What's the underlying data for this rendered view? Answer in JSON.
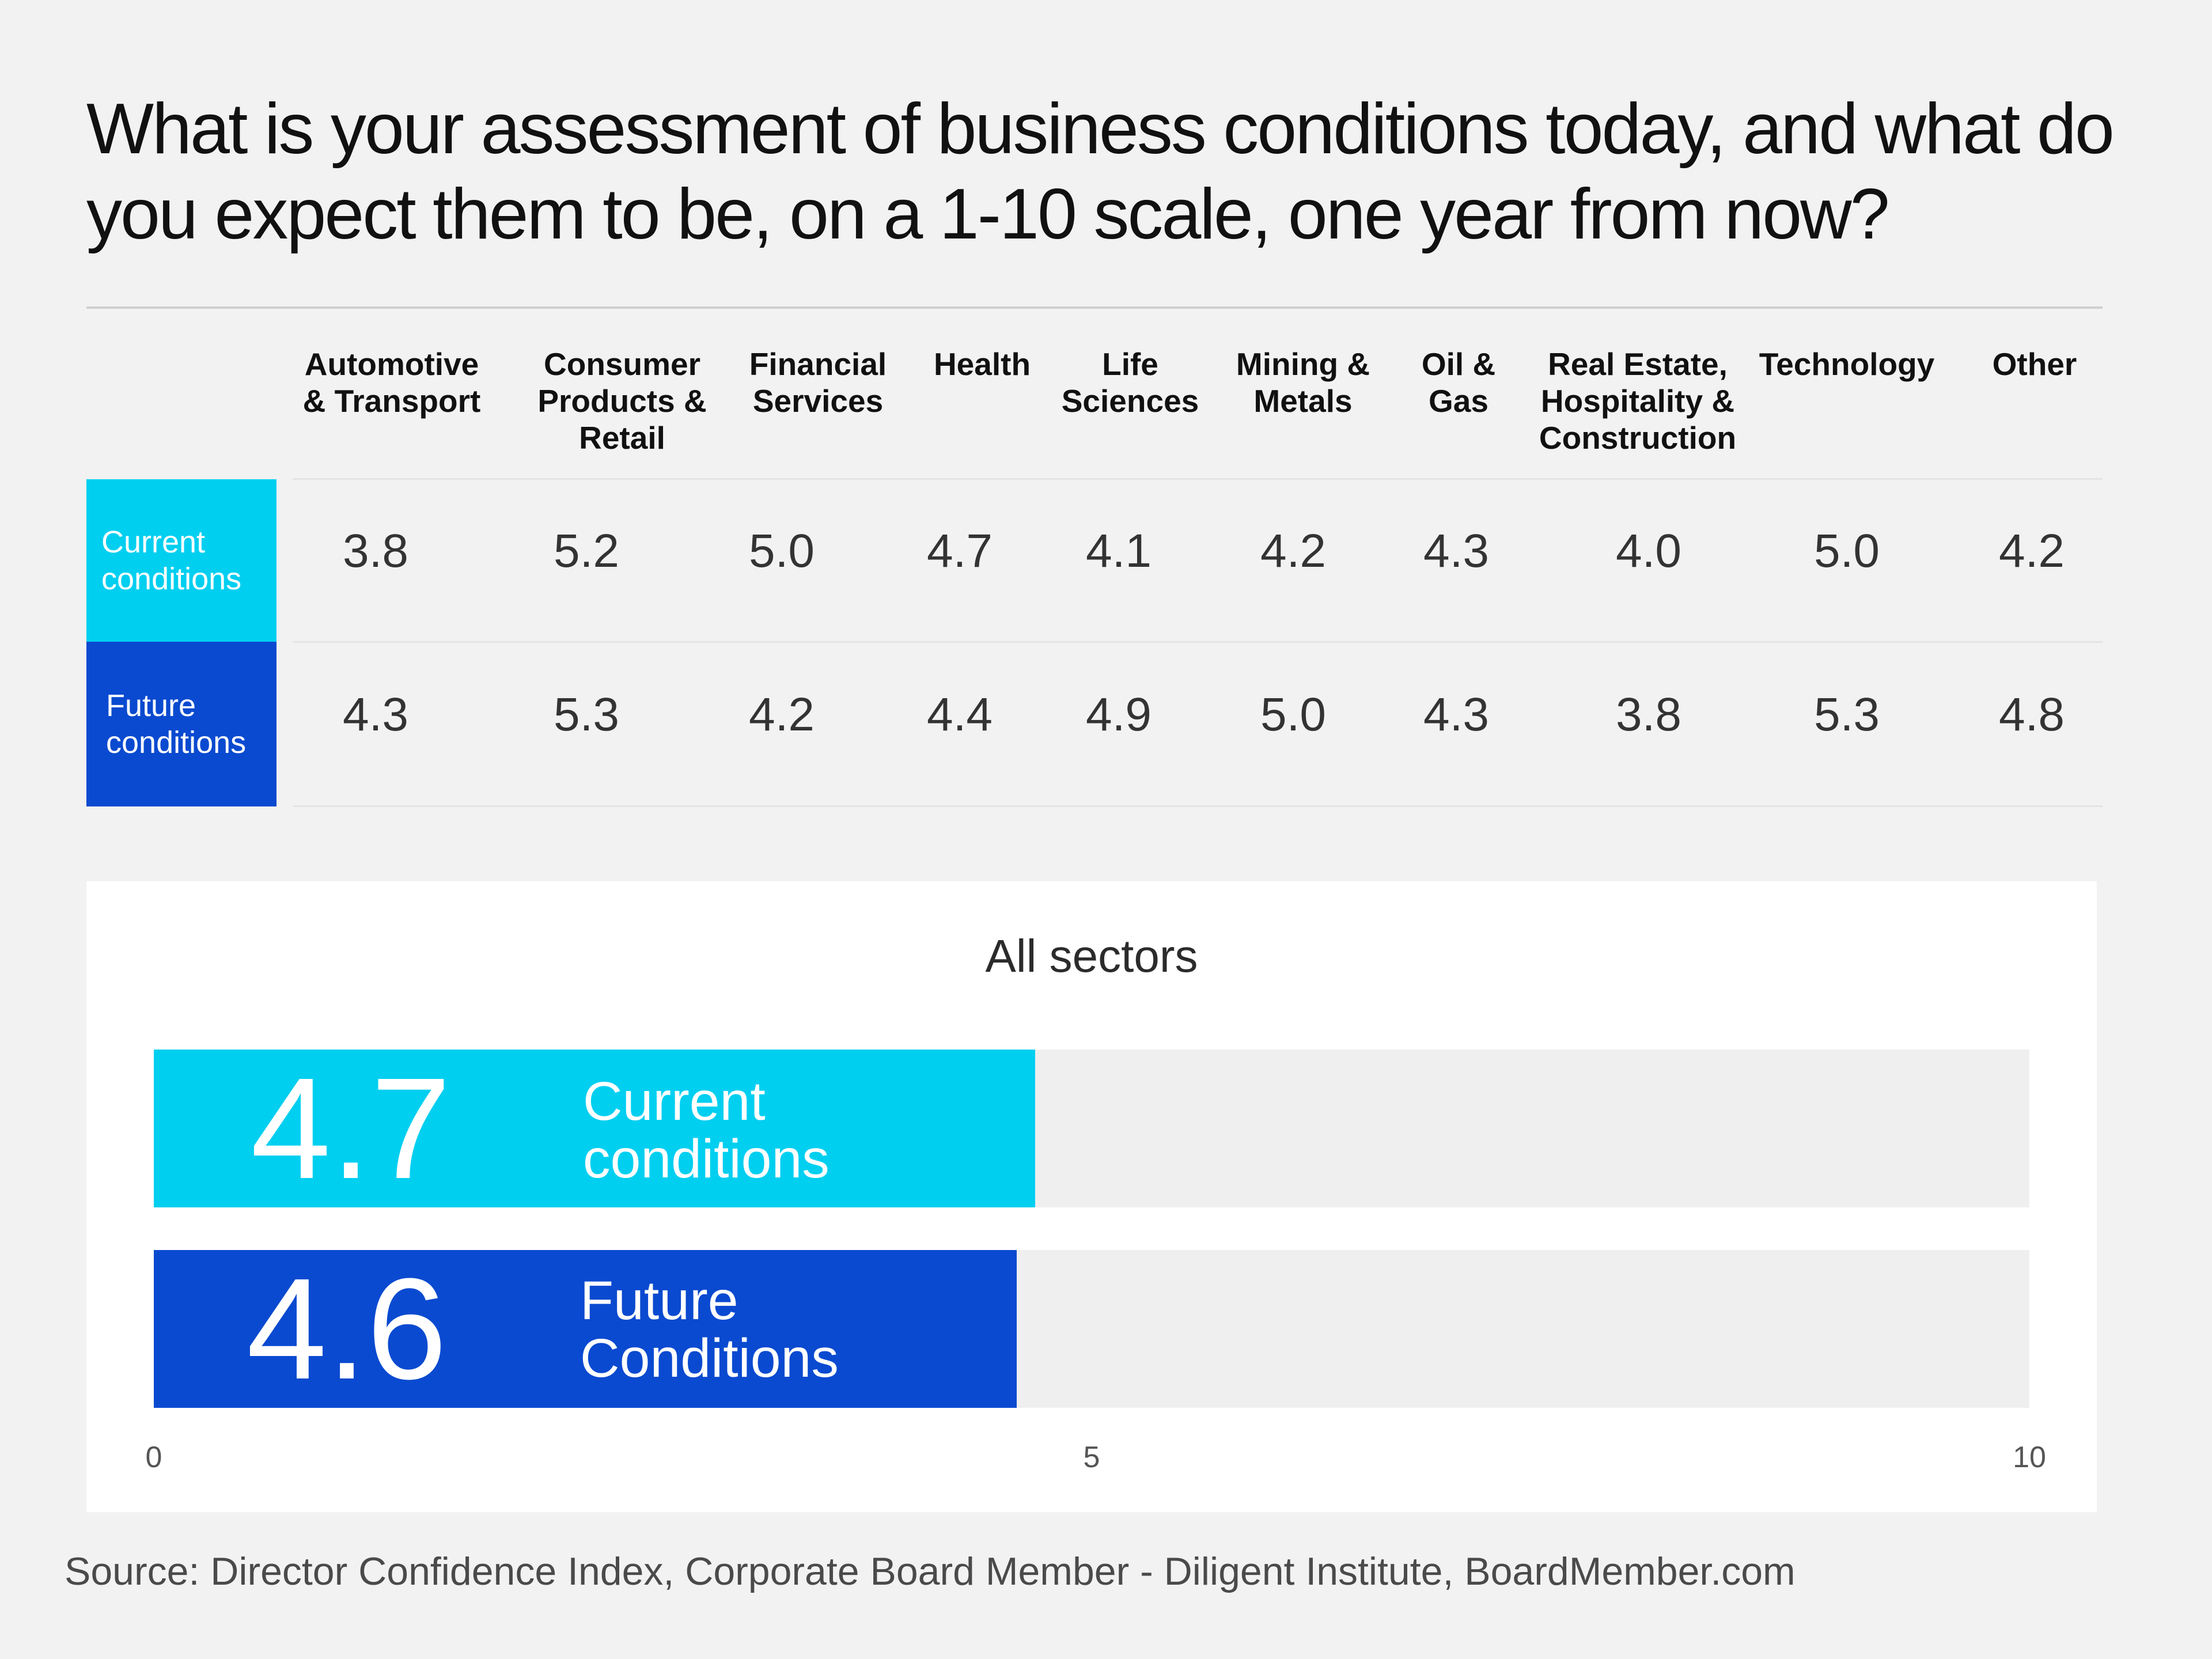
{
  "title": "What is your assessment of business conditions today, and what do you expect them to be, on a 1-10 scale, one year from now?",
  "colors": {
    "current": "#00cff0",
    "future": "#0a4ad0",
    "track": "#efefef"
  },
  "chart_data": [
    {
      "type": "table",
      "columns": [
        "Automotive\n& Transport",
        "Consumer\nProducts &\nRetail",
        "Financial\nServices",
        "Health",
        "Life\nSciences",
        "Mining &\nMetals",
        "Oil &\nGas",
        "Real Estate,\nHospitality &\nConstruction",
        "Technology",
        "Other"
      ],
      "rows": [
        {
          "label_line1": "Current",
          "label_line2": "conditions",
          "values": [
            "3.8",
            "5.2",
            "5.0",
            "4.7",
            "4.1",
            "4.2",
            "4.3",
            "4.0",
            "5.0",
            "4.2"
          ]
        },
        {
          "label_line1": "Future",
          "label_line2": "conditions",
          "values": [
            "4.3",
            "5.3",
            "4.2",
            "4.4",
            "4.9",
            "5.0",
            "4.3",
            "3.8",
            "5.3",
            "4.8"
          ]
        }
      ]
    },
    {
      "type": "bar",
      "orientation": "horizontal",
      "title": "All sectors",
      "xlim": [
        0,
        10
      ],
      "xticks": [
        "0",
        "5",
        "10"
      ],
      "bars": [
        {
          "value": 4.7,
          "value_label": "4.7",
          "label_line1": "Current",
          "label_line2": "conditions"
        },
        {
          "value": 4.6,
          "value_label": "4.6",
          "label_line1": "Future",
          "label_line2": "Conditions"
        }
      ]
    }
  ],
  "source": "Source: Director Confidence Index, Corporate Board Member - Diligent Institute, BoardMember.com"
}
